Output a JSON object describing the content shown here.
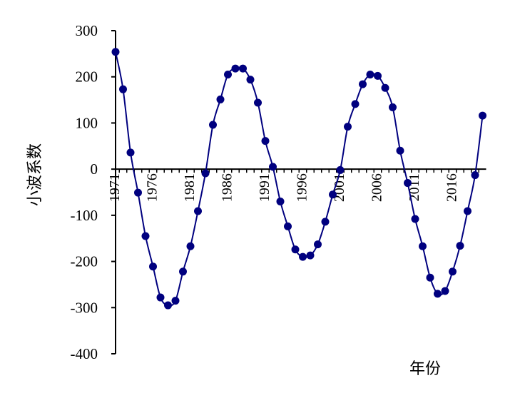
{
  "chart_data": {
    "type": "line",
    "title": "",
    "xlabel": "年份",
    "ylabel": "小波系数",
    "xlim": [
      1971,
      2020
    ],
    "ylim": [
      -400,
      300
    ],
    "y_ticks": [
      300,
      200,
      100,
      0,
      -100,
      -200,
      -300,
      -400
    ],
    "x_tick_labels": [
      "1971",
      "1976",
      "1981",
      "1986",
      "1991",
      "1996",
      "2001",
      "2006",
      "2011",
      "2016"
    ],
    "grid": false,
    "legend": "none",
    "series_color": "#00007f",
    "series": [
      {
        "x": [
          1971,
          1972,
          1973,
          1974,
          1975,
          1976,
          1977,
          1978,
          1979,
          1980,
          1981,
          1982,
          1983,
          1984,
          1985,
          1986,
          1987,
          1988,
          1989,
          1990,
          1991,
          1992,
          1993,
          1994,
          1995,
          1996,
          1997,
          1998,
          1999,
          2000,
          2001,
          2002,
          2003,
          2004,
          2005,
          2006,
          2007,
          2008,
          2009,
          2010,
          2011,
          2012,
          2013,
          2014,
          2015,
          2016,
          2017,
          2018,
          2019,
          2020
        ],
        "values": [
          254,
          173,
          36,
          -51,
          -145,
          -211,
          -278,
          -295,
          -285,
          -222,
          -167,
          -91,
          -9,
          96,
          151,
          205,
          218,
          218,
          194,
          144,
          61,
          5,
          -70,
          -124,
          -174,
          -190,
          -187,
          -163,
          -114,
          -55,
          -2,
          92,
          141,
          184,
          205,
          202,
          176,
          134,
          40,
          -30,
          -108,
          -167,
          -235,
          -270,
          -264,
          -222,
          -166,
          -91,
          -13,
          116
        ]
      }
    ]
  }
}
